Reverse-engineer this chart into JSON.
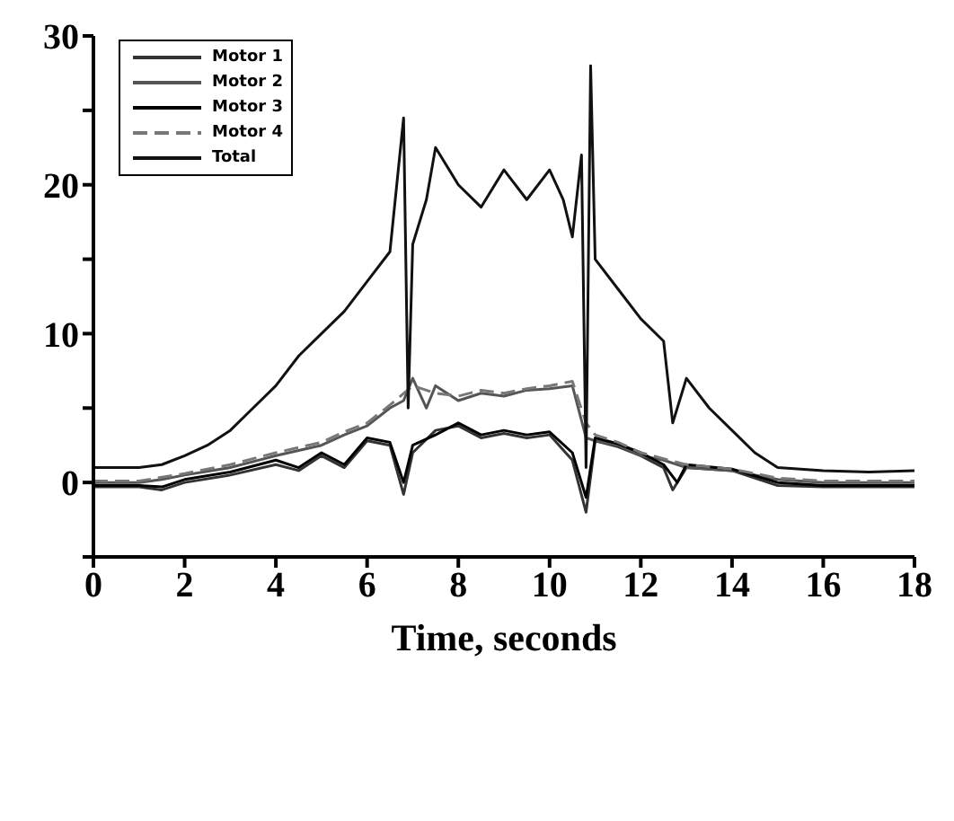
{
  "chart_data": {
    "type": "line",
    "xlabel": "Time, seconds",
    "xlim": [
      0,
      18
    ],
    "xticks": [
      0,
      2,
      4,
      6,
      8,
      10,
      12,
      14,
      16,
      18
    ],
    "ylim": [
      -5,
      30
    ],
    "yticks": [
      {
        "value": -5,
        "label": null
      },
      0,
      {
        "value": 5,
        "label": null
      },
      10,
      {
        "value": 15,
        "label": null
      },
      20,
      {
        "value": 25,
        "label": null
      },
      30
    ],
    "legend": "top left",
    "marker": "none",
    "line_style": "solid",
    "series": [
      {
        "name": "Motor 1",
        "color": "#333333",
        "x": [
          0,
          1,
          1.5,
          2,
          3,
          4,
          4.5,
          5,
          5.5,
          6,
          6.5,
          6.8,
          7,
          7.5,
          8,
          8.5,
          9,
          9.5,
          10,
          10.5,
          10.8,
          11,
          11.5,
          12,
          12.5,
          12.7,
          13,
          14,
          15,
          16,
          18
        ],
        "values": [
          -0.3,
          -0.3,
          -0.5,
          0,
          0.5,
          1.2,
          0.8,
          1.8,
          1,
          2.8,
          2.5,
          -0.8,
          2,
          3.5,
          3.8,
          3,
          3.3,
          3,
          3.2,
          1.5,
          -2,
          2.8,
          2.4,
          1.8,
          1,
          -0.5,
          1,
          0.8,
          -0.2,
          -0.3,
          -0.3
        ]
      },
      {
        "name": "Motor 2",
        "color": "#555555",
        "x": [
          0,
          1,
          1.5,
          2,
          3,
          4,
          5,
          5.5,
          6,
          6.5,
          6.8,
          7,
          7.3,
          7.5,
          8,
          8.5,
          9,
          9.5,
          10,
          10.5,
          10.8,
          11,
          11.5,
          12,
          12.5,
          13,
          14,
          15,
          16,
          18
        ],
        "values": [
          0,
          0,
          0.2,
          0.5,
          1,
          1.8,
          2.5,
          3.2,
          3.8,
          5,
          5.5,
          7,
          5,
          6.5,
          5.5,
          6,
          5.8,
          6.2,
          6.3,
          6.5,
          3,
          2.8,
          2.5,
          1.8,
          1.5,
          1,
          0.8,
          0.2,
          0,
          0
        ]
      },
      {
        "name": "Motor 3",
        "color": "#000000",
        "x": [
          0,
          1,
          1.5,
          2,
          3,
          4,
          4.5,
          5,
          5.5,
          6,
          6.5,
          6.8,
          7,
          7.5,
          8,
          8.5,
          9,
          9.5,
          10,
          10.5,
          10.8,
          11,
          11.5,
          12,
          12.5,
          12.8,
          13,
          14,
          15,
          16,
          18
        ],
        "values": [
          -0.2,
          -0.2,
          -0.3,
          0.2,
          0.7,
          1.5,
          1,
          2,
          1.2,
          3,
          2.7,
          0,
          2.5,
          3.2,
          4,
          3.2,
          3.5,
          3.2,
          3.4,
          2,
          -1,
          3,
          2.6,
          2,
          1.2,
          0,
          1.2,
          0.9,
          0,
          -0.2,
          -0.2
        ]
      },
      {
        "name": "Motor 4",
        "color": "#777777",
        "line_style": "dashed",
        "x": [
          0,
          1,
          2,
          3,
          4,
          5,
          5.5,
          6,
          6.5,
          7,
          7.5,
          8,
          8.5,
          9,
          9.5,
          10,
          10.5,
          10.8,
          11,
          11.5,
          12,
          12.5,
          13,
          14,
          15,
          16,
          18
        ],
        "values": [
          0.1,
          0.1,
          0.6,
          1.2,
          2,
          2.7,
          3.4,
          4,
          5.2,
          6.5,
          6,
          5.8,
          6.2,
          6,
          6.3,
          6.5,
          6.8,
          4,
          3.2,
          2.7,
          2,
          1.6,
          1.2,
          0.9,
          0.3,
          0.1,
          0.1
        ]
      },
      {
        "name": "Total",
        "color": "#111111",
        "x": [
          0,
          1,
          1.5,
          2,
          2.5,
          3,
          3.5,
          4,
          4.5,
          5,
          5.5,
          6,
          6.5,
          6.8,
          6.9,
          7,
          7.3,
          7.5,
          8,
          8.5,
          9,
          9.5,
          10,
          10.3,
          10.5,
          10.7,
          10.8,
          10.9,
          11,
          11.5,
          12,
          12.5,
          12.7,
          13,
          13.5,
          14,
          14.5,
          15,
          16,
          17,
          18
        ],
        "values": [
          1,
          1,
          1.2,
          1.8,
          2.5,
          3.5,
          5,
          6.5,
          8.5,
          10,
          11.5,
          13.5,
          15.5,
          24.5,
          5,
          16,
          19,
          22.5,
          20,
          18.5,
          21,
          19,
          21,
          19,
          16.5,
          22,
          1,
          28,
          15,
          13,
          11,
          9.5,
          4,
          7,
          5,
          3.5,
          2,
          1,
          0.8,
          0.7,
          0.8
        ]
      }
    ]
  }
}
